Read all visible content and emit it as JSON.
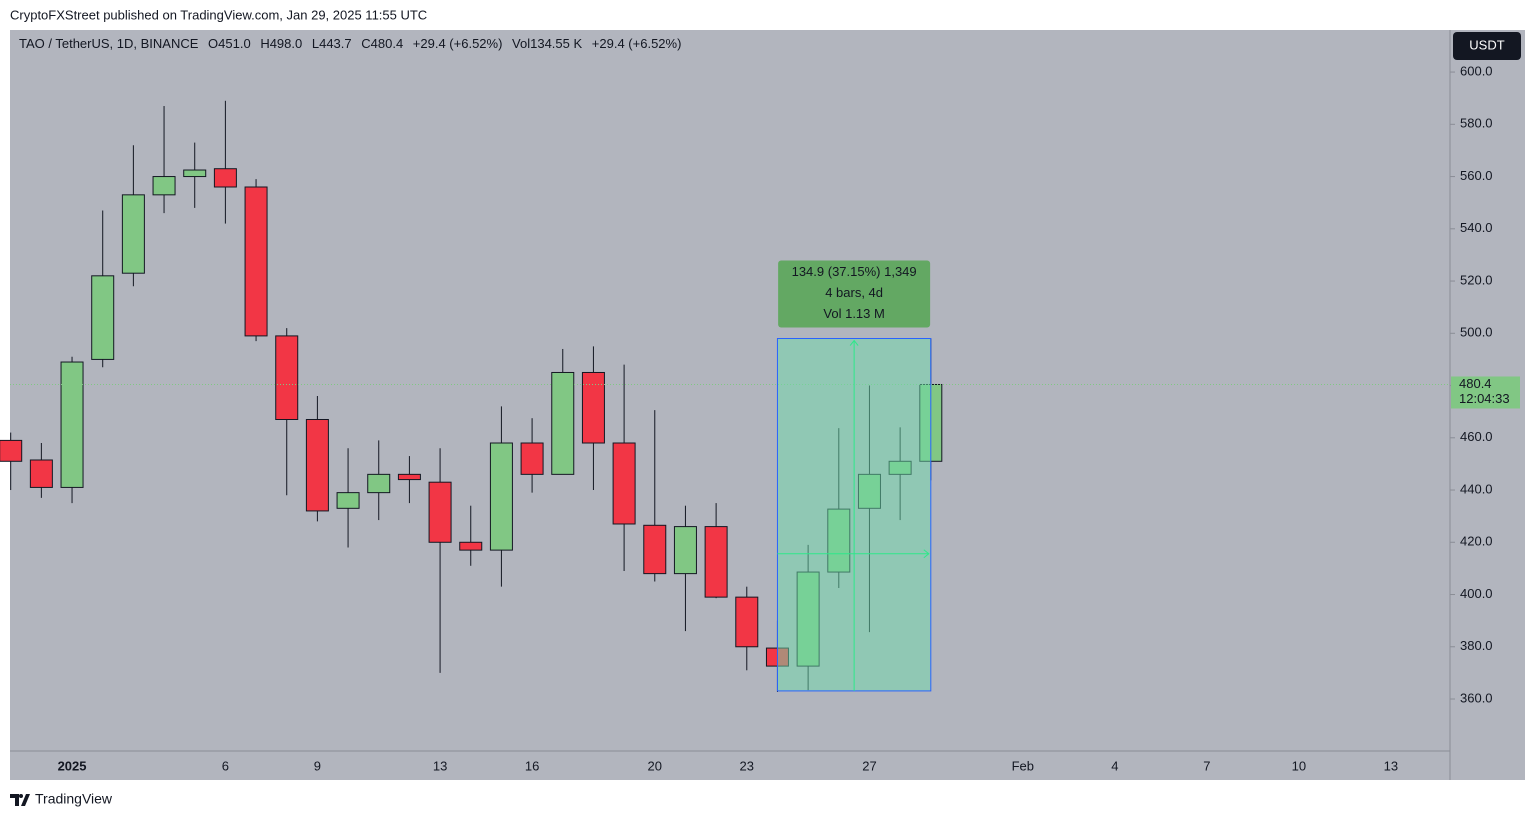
{
  "header": "CryptoFXStreet published on TradingView.com, Jan 29, 2025 11:55 UTC",
  "footer": "TradingView",
  "currency": "USDT",
  "legend": {
    "symbol": "TAO / TetherUS, 1D, BINANCE",
    "items": [
      "O451.0",
      "H498.0",
      "L443.7",
      "C480.4",
      "+29.4 (+6.52%)",
      "Vol134.55 K",
      "+29.4 (+6.52%)"
    ]
  },
  "chart_data": {
    "type": "candlestick",
    "categories": [
      null,
      null,
      "2025",
      null,
      null,
      null,
      null,
      "6",
      null,
      null,
      "9",
      null,
      null,
      null,
      "13",
      null,
      null,
      "16",
      null,
      null,
      null,
      "20",
      null,
      null,
      "23",
      null,
      null,
      null,
      "27",
      null,
      null,
      null,
      null,
      "Feb",
      null,
      null,
      "4",
      null,
      null,
      "7",
      null,
      null,
      "10",
      null,
      null,
      "13"
    ],
    "series": [
      {
        "name": "open",
        "values": [
          459,
          451.5,
          441,
          490,
          523,
          553,
          560,
          563,
          556,
          499,
          467,
          433,
          439,
          446,
          443,
          420,
          417,
          458,
          446,
          485,
          458,
          426.5,
          408,
          426,
          399,
          379.5,
          372.6,
          408.6,
          433,
          446,
          451.0,
          null,
          null,
          null,
          null,
          null,
          null,
          null,
          null,
          null,
          null,
          null,
          null,
          null,
          null,
          null
        ]
      },
      {
        "name": "high",
        "values": [
          462,
          458,
          491,
          547,
          572,
          587,
          573,
          589,
          559,
          502,
          476,
          456,
          459,
          453,
          456,
          434,
          472,
          467.5,
          494,
          495,
          488,
          470.6,
          434,
          435,
          403,
          390,
          419,
          463.7,
          480,
          464,
          498.0,
          null,
          null,
          null,
          null,
          null,
          null,
          null,
          null,
          null,
          null,
          null,
          null,
          null,
          null,
          null
        ]
      },
      {
        "name": "low",
        "values": [
          440,
          437,
          435,
          487,
          518,
          546,
          548,
          542,
          497,
          438,
          428,
          418,
          428.5,
          435,
          370,
          411,
          403,
          439,
          446,
          440,
          409,
          405,
          386,
          398.6,
          371,
          362.7,
          363.4,
          402.5,
          385.6,
          428.5,
          443.7,
          null,
          null,
          null,
          null,
          null,
          null,
          null,
          null,
          null,
          null,
          null,
          null,
          null,
          null,
          null
        ]
      },
      {
        "name": "close",
        "values": [
          451,
          441,
          489,
          522,
          553,
          560,
          562.5,
          556,
          499,
          467,
          432,
          439,
          446,
          444,
          420,
          417,
          458,
          446,
          485,
          458,
          427,
          408,
          426,
          399,
          380,
          372.6,
          408.6,
          432.7,
          446,
          451,
          480.4,
          null,
          null,
          null,
          null,
          null,
          null,
          null,
          null,
          null,
          null,
          null,
          null,
          null,
          null,
          null
        ]
      }
    ],
    "up_color": "#81c784",
    "down_color": "#f23645",
    "ylim": [
      340.1,
      616.1
    ],
    "yticks": [
      {
        "value": 360,
        "label": "360.0"
      },
      {
        "value": 380,
        "label": "380.0"
      },
      {
        "value": 400,
        "label": "400.0"
      },
      {
        "value": 420,
        "label": "420.0"
      },
      {
        "value": 440,
        "label": "440.0"
      },
      {
        "value": 460,
        "label": "460.0"
      },
      {
        "value": 480,
        "label": "480.0"
      },
      {
        "value": 500,
        "label": "500.0"
      },
      {
        "value": 520,
        "label": "520.0"
      },
      {
        "value": 540,
        "label": "540.0"
      },
      {
        "value": 560,
        "label": "560.0"
      },
      {
        "value": 580,
        "label": "580.0"
      },
      {
        "value": 600,
        "label": "600.0"
      }
    ],
    "last_price": {
      "value": 480.4,
      "label": "480.4"
    },
    "countdown": "12:04:33",
    "measure": {
      "low": 363.1,
      "high": 498.0,
      "labels": [
        "134.9 (37.15%) 1,349",
        "4 bars, 4d",
        "Vol 1.13 M"
      ]
    }
  }
}
